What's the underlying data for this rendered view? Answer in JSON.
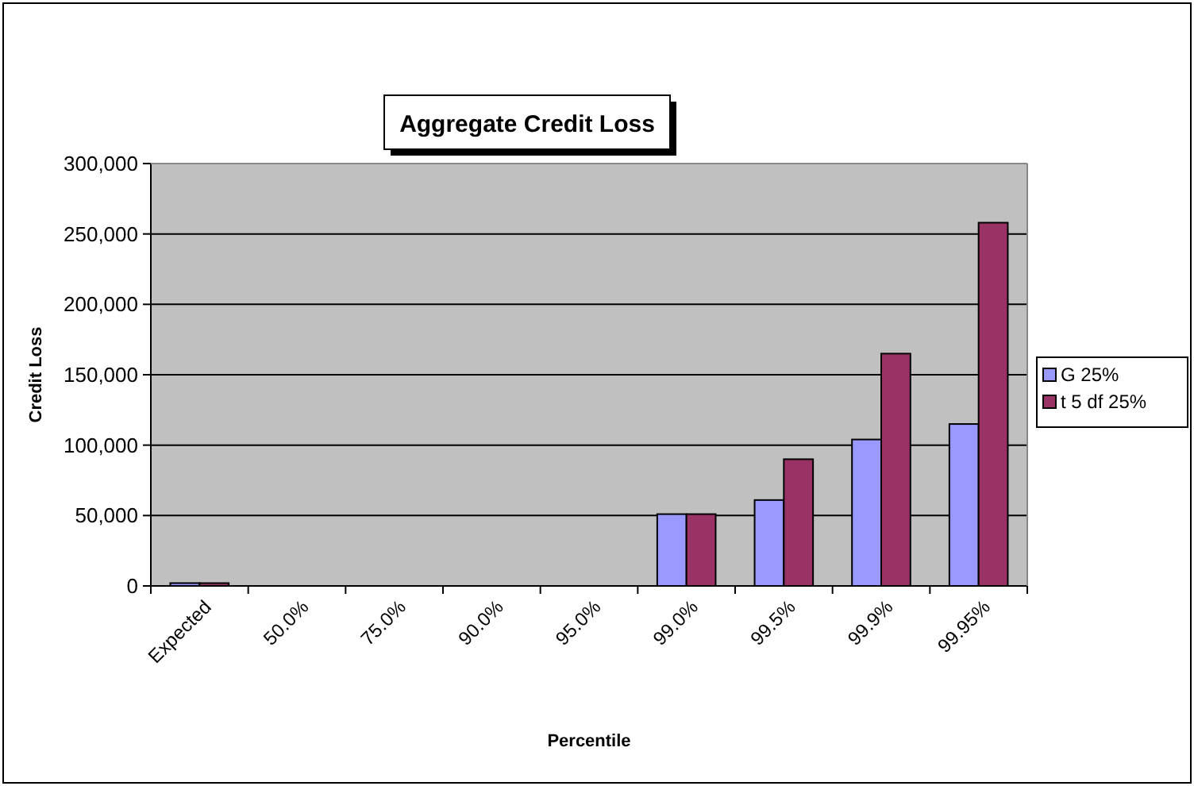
{
  "chart_data": {
    "type": "bar",
    "title": "Aggregate Credit Loss",
    "xlabel": "Percentile",
    "ylabel": "Credit Loss",
    "categories": [
      "Expected",
      "50.0%",
      "75.0%",
      "90.0%",
      "95.0%",
      "99.0%",
      "99.5%",
      "99.9%",
      "99.95%"
    ],
    "series": [
      {
        "name": "G 25%",
        "color": "#9999ff",
        "values": [
          2000,
          0,
          0,
          0,
          0,
          51000,
          61000,
          104000,
          115000
        ]
      },
      {
        "name": "t 5 df 25%",
        "color": "#993366",
        "values": [
          2000,
          0,
          0,
          0,
          0,
          51000,
          90000,
          165000,
          258000
        ]
      }
    ],
    "ylim": [
      0,
      300000
    ],
    "yticks": [
      {
        "value": 0,
        "label": "0"
      },
      {
        "value": 50000,
        "label": "50,000"
      },
      {
        "value": 100000,
        "label": "100,000"
      },
      {
        "value": 150000,
        "label": "150,000"
      },
      {
        "value": 200000,
        "label": "200,000"
      },
      {
        "value": 250000,
        "label": "250,000"
      },
      {
        "value": 300000,
        "label": "300,000"
      }
    ],
    "grid": "y",
    "legend": "right"
  }
}
